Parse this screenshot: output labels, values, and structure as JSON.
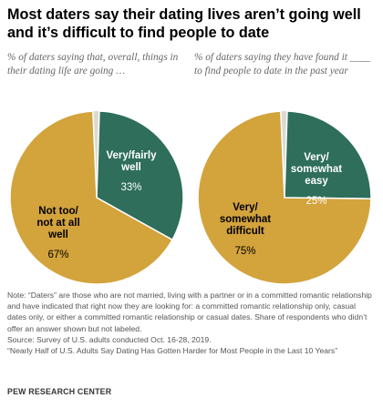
{
  "title": "Most daters say their dating lives aren’t going well and it’s difficult to find people to date",
  "chart_data": [
    {
      "type": "pie",
      "subtitle": "% of daters saying that, overall, things in their dating life are going …",
      "slices": [
        {
          "label": "Very/fairly well",
          "label_lines": [
            "Very/fairly",
            "well"
          ],
          "value": 33,
          "value_label": "33%",
          "color": "#2e6e5b",
          "text_color": "#ffffff"
        },
        {
          "label": "Not too/not at all well",
          "label_lines": [
            "Not too/",
            "not at all",
            "well"
          ],
          "value": 67,
          "value_label": "67%",
          "color": "#d3a33c",
          "text_color": "#000000"
        }
      ],
      "unlabeled_share_color": "#dcdad1"
    },
    {
      "type": "pie",
      "subtitle": "% of daters saying they have found it ____ to find people to date in the past year",
      "slices": [
        {
          "label": "Very/somewhat easy",
          "label_lines": [
            "Very/",
            "somewhat",
            "easy"
          ],
          "value": 25,
          "value_label": "25%",
          "color": "#2e6e5b",
          "text_color": "#ffffff"
        },
        {
          "label": "Very/somewhat difficult",
          "label_lines": [
            "Very/",
            "somewhat",
            "difficult"
          ],
          "value": 75,
          "value_label": "75%",
          "color": "#d3a33c",
          "text_color": "#000000"
        }
      ],
      "unlabeled_share_color": "#dcdad1"
    }
  ],
  "notes": [
    "Note: “Daters” are those who are not married, living with a partner or in a committed romantic relationship and have indicated that right now they are looking for: a committed romantic relationship only, casual dates only, or either a committed romantic relationship or casual dates. Share of respondents who didn’t offer an answer shown but not labeled.",
    "Source: Survey of U.S. adults conducted Oct. 16-28, 2019.",
    "“Nearly Half of U.S. Adults Say Dating Has Gotten Harder for Most People in the Last 10 Years”"
  ],
  "source_org": "PEW RESEARCH CENTER"
}
